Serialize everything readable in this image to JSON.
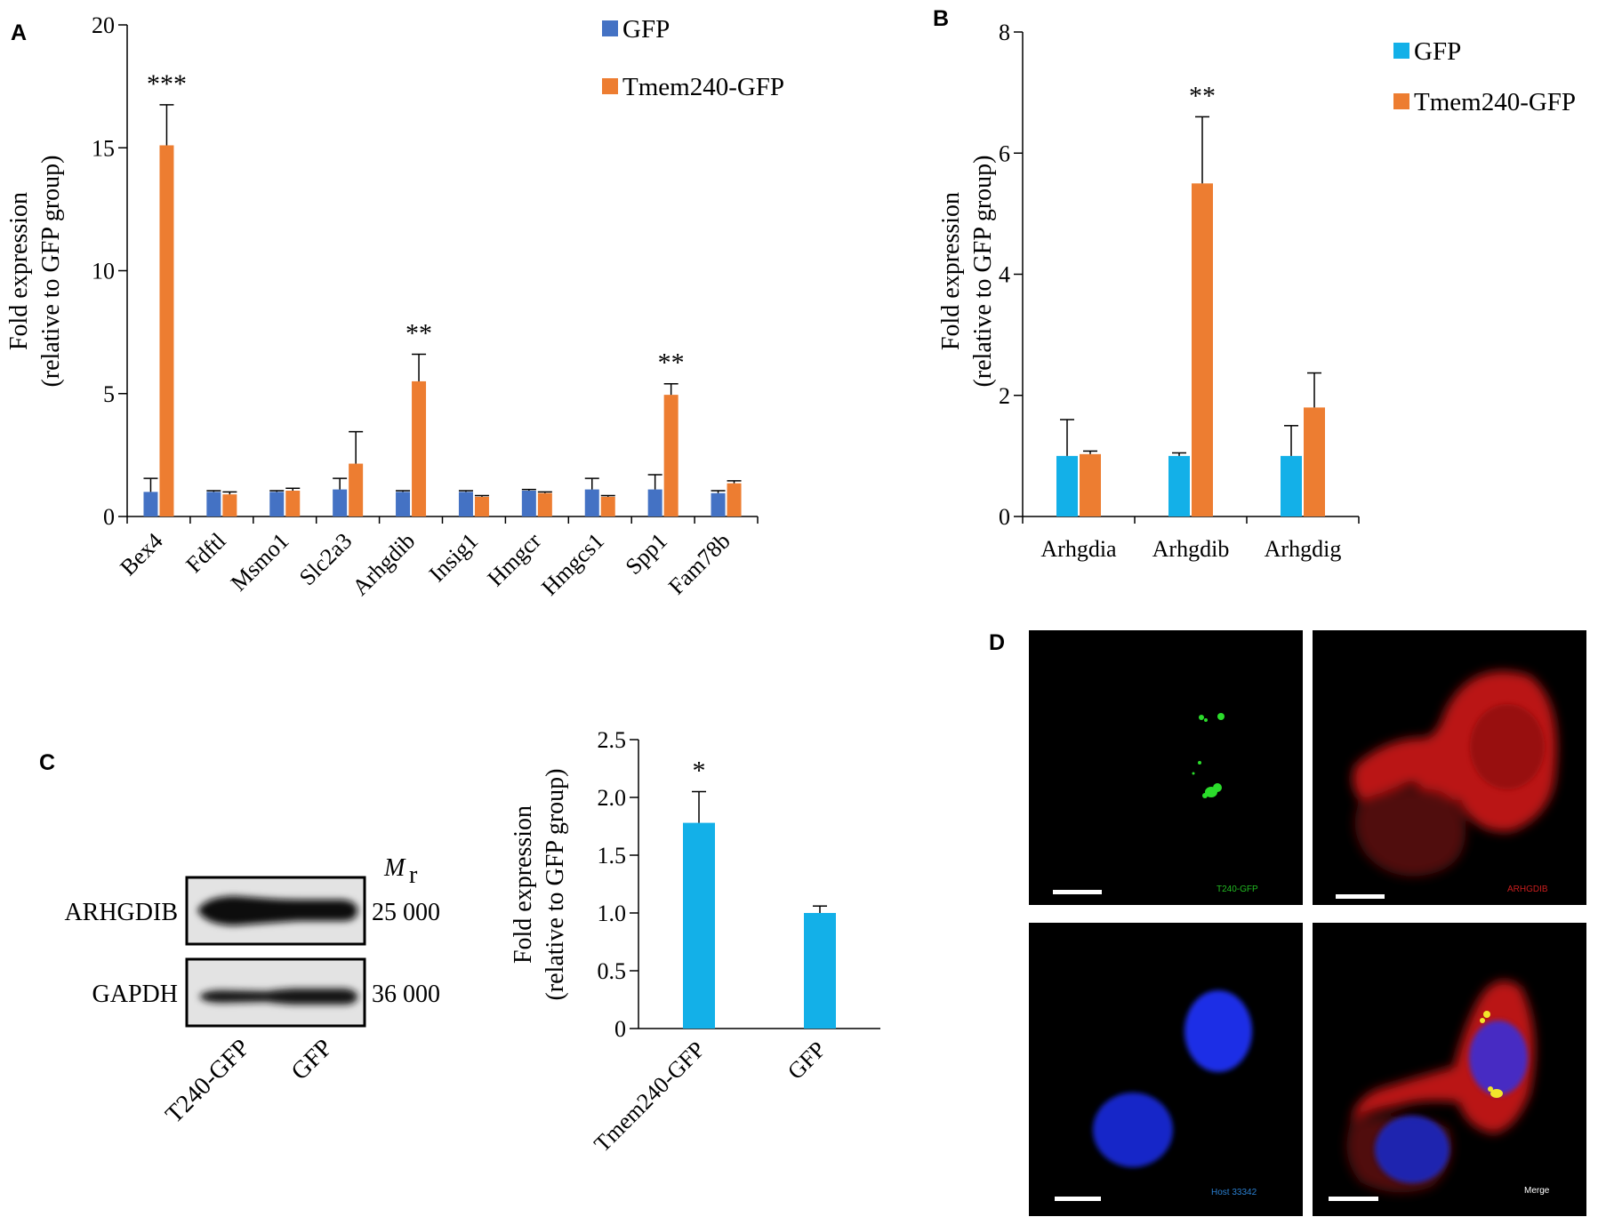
{
  "chart_data": [
    {
      "panel": "A",
      "type": "bar",
      "categories": [
        "Bex4",
        "Fdftl",
        "Msmo1",
        "Slc2a3",
        "Arhgdib",
        "Insig1",
        "Hmgcr",
        "Hmgcs1",
        "Spp1",
        "Fam78b"
      ],
      "series": [
        {
          "name": "GFP",
          "color": "#4472c4",
          "values": [
            1.0,
            1.0,
            1.0,
            1.1,
            1.0,
            1.0,
            1.05,
            1.1,
            1.1,
            0.95
          ],
          "errors": [
            0.55,
            0.05,
            0.05,
            0.45,
            0.05,
            0.05,
            0.05,
            0.45,
            0.6,
            0.1
          ]
        },
        {
          "name": "Tmem240-GFP",
          "color": "#ed7d31",
          "values": [
            15.1,
            0.9,
            1.05,
            2.15,
            5.5,
            0.8,
            0.95,
            0.8,
            4.95,
            1.35
          ],
          "errors": [
            1.65,
            0.1,
            0.1,
            1.3,
            1.1,
            0.05,
            0.05,
            0.05,
            0.45,
            0.1
          ]
        }
      ],
      "annotations": [
        "***",
        "",
        "",
        "",
        "**",
        "",
        "",
        "",
        "**",
        ""
      ],
      "ylabel": [
        "Fold expression",
        "(relative to GFP group)"
      ],
      "yticks": [
        0,
        5,
        10,
        15,
        20
      ],
      "ylim": [
        0,
        20
      ],
      "legend": "top-right"
    },
    {
      "panel": "B",
      "type": "bar",
      "categories": [
        "Arhgdia",
        "Arhgdib",
        "Arhgdig"
      ],
      "series": [
        {
          "name": "GFP",
          "color": "#13b0e8",
          "values": [
            1.0,
            1.0,
            1.0
          ],
          "errors": [
            0.6,
            0.05,
            0.5
          ]
        },
        {
          "name": "Tmem240-GFP",
          "color": "#ed7d31",
          "values": [
            1.03,
            5.5,
            1.8
          ],
          "errors": [
            0.05,
            1.1,
            0.57
          ]
        }
      ],
      "annotations": [
        "",
        "**",
        ""
      ],
      "ylabel": [
        "Fold expression",
        "(relative to GFP group)"
      ],
      "yticks": [
        0,
        2,
        4,
        6,
        8
      ],
      "ylim": [
        0,
        8
      ],
      "legend": "top-right"
    },
    {
      "panel": "C",
      "type": "bar",
      "categories": [
        "Tmem240-GFP",
        "GFP"
      ],
      "series": [
        {
          "color": "#13b0e8",
          "values": [
            1.78,
            1.0
          ],
          "errors": [
            0.27,
            0.06
          ]
        }
      ],
      "annotations": [
        "*",
        ""
      ],
      "ylabel": [
        "Fold expression",
        "(relative to GFP group)"
      ],
      "yticks": [
        "0",
        "0.5",
        "1.0",
        "1.5",
        "2.0",
        "2.5"
      ],
      "ylim": [
        0,
        2.5
      ]
    }
  ],
  "panels": {
    "a": "A",
    "b": "B",
    "c": "C",
    "d": "D"
  },
  "blot": {
    "mr_label": "M",
    "mr_sub": "r",
    "rows": [
      {
        "label": "ARHGDIB",
        "mass": "25 000"
      },
      {
        "label": "GAPDH",
        "mass": "36 000"
      }
    ],
    "lanes": [
      "T240-GFP",
      "GFP"
    ]
  },
  "micrographs": {
    "labels": [
      "T240-GFP",
      "ARHGDIB",
      "Host 33342",
      "Merge"
    ],
    "label_colors": [
      "#22bb22",
      "#c81e1e",
      "#2a7fd0",
      "#ffffff"
    ]
  }
}
